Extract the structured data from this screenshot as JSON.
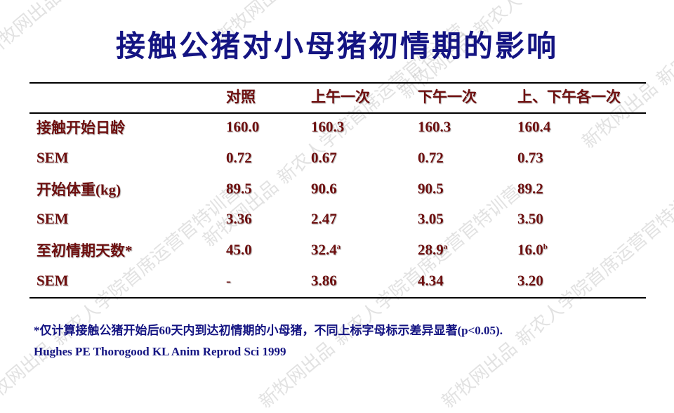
{
  "title": "接触公猪对小母猪初情期的影响",
  "table": {
    "header": [
      "对照",
      "上午一次",
      "下午一次",
      "上、下午各一次"
    ],
    "rows": [
      {
        "label": "接触开始日龄",
        "cells": [
          {
            "text": "160.0"
          },
          {
            "text": "160.3"
          },
          {
            "text": "160.3"
          },
          {
            "text": "160.4"
          }
        ]
      },
      {
        "label": "SEM",
        "cells": [
          {
            "text": "0.72"
          },
          {
            "text": "0.67"
          },
          {
            "text": "0.72"
          },
          {
            "text": "0.73"
          }
        ]
      },
      {
        "label": "开始体重(kg)",
        "cells": [
          {
            "text": "89.5"
          },
          {
            "text": "90.6"
          },
          {
            "text": "90.5"
          },
          {
            "text": "89.2"
          }
        ]
      },
      {
        "label": "SEM",
        "cells": [
          {
            "text": "3.36"
          },
          {
            "text": "2.47"
          },
          {
            "text": "3.05"
          },
          {
            "text": "3.50"
          }
        ]
      },
      {
        "label": "至初情期天数*",
        "cells": [
          {
            "text": "45.0"
          },
          {
            "text": "32.4",
            "sup": "a"
          },
          {
            "text": "28.9",
            "sup": "a"
          },
          {
            "text": "16.0",
            "sup": "b"
          }
        ]
      },
      {
        "label": "SEM",
        "cells": [
          {
            "text": "-"
          },
          {
            "text": "3.86"
          },
          {
            "text": "4.34"
          },
          {
            "text": "3.20"
          }
        ]
      }
    ]
  },
  "footnote": "*仅计算接触公猪开始后60天内到达初情期的小母猪，不同上标字母标示差异显著(p<0.05).",
  "citation": "Hughes PE Thorogood KL Anim Reprod Sci 1999",
  "watermark": "新牧网出品 新农人学院首席运营官特训营"
}
